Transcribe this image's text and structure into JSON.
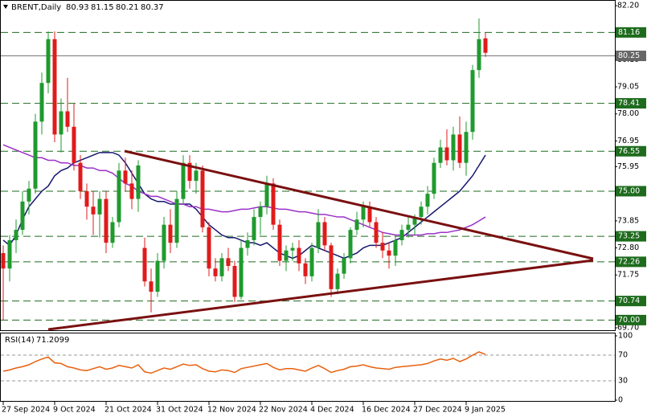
{
  "chart_data": {
    "type": "candlestick",
    "title": "BRENT,Daily",
    "up_color": "#1f9a2e",
    "down_color": "#e01b1b",
    "ylim": [
      69.7,
      82.2
    ],
    "yticks": [
      {
        "value": 82.2,
        "label": "82.20"
      },
      {
        "value": 80.1,
        "label": "80.10"
      },
      79.05,
      {
        "value": 78,
        "label": "78.00"
      },
      76.95,
      75.95,
      73.85,
      {
        "value": 72.8,
        "label": "72.80"
      },
      71.75,
      {
        "value": 69.7,
        "label": "69.70"
      }
    ],
    "levels": [
      81.16,
      78.41,
      76.55,
      {
        "value": 75,
        "label": "75.00"
      },
      73.25,
      72.26,
      70.74,
      {
        "value": 70,
        "label": "70.00"
      }
    ],
    "level_color": "#1e6b1e",
    "price_line": 80.25,
    "categories": [
      "27 Sep 2024",
      null,
      null,
      null,
      null,
      null,
      null,
      null,
      "9 Oct 2024",
      null,
      null,
      null,
      null,
      null,
      null,
      null,
      "21 Oct 2024",
      null,
      null,
      null,
      null,
      null,
      null,
      null,
      "31 Oct 2024",
      null,
      null,
      null,
      null,
      null,
      null,
      null,
      "12 Nov 2024",
      null,
      null,
      null,
      null,
      null,
      null,
      null,
      "22 Nov 2024",
      null,
      null,
      null,
      null,
      null,
      null,
      null,
      "4 Dec 2024",
      null,
      null,
      null,
      null,
      null,
      null,
      null,
      "16 Dec 2024",
      null,
      null,
      null,
      null,
      null,
      null,
      null,
      "27 Dec 2024",
      null,
      null,
      null,
      null,
      null,
      null,
      null,
      "9 Jan 2025",
      null,
      null,
      null
    ],
    "open": [
      72.6,
      72.0,
      73.1,
      73.5,
      74.6,
      75.1,
      77.7,
      79.2,
      80.9,
      77.2,
      78.1,
      77.5,
      76.1,
      75.0,
      74.4,
      74.1,
      74.7,
      73.0,
      73.8,
      75.8,
      75.3,
      74.7,
      72.8,
      71.5,
      71.1,
      72.3,
      73.7,
      73.0,
      74.7,
      76.1,
      75.4,
      75.8,
      73.6,
      72.0,
      71.7,
      72.4,
      72.1,
      70.9,
      72.8,
      73.1,
      74.0,
      74.4,
      75.3,
      73.7,
      72.3,
      72.7,
      72.8,
      72.2,
      71.7,
      72.8,
      73.8,
      72.9,
      71.2,
      71.8,
      72.4,
      73.5,
      73.9,
      74.4,
      73.8,
      73.0,
      72.7,
      72.5,
      73.1,
      73.5,
      73.7,
      74.0,
      74.4,
      74.9,
      76.1,
      76.7,
      76.2,
      77.2,
      76.1,
      77.3,
      79.7,
      80.93
    ],
    "high": [
      72.9,
      73.3,
      73.9,
      75.0,
      75.4,
      78.0,
      79.6,
      81.2,
      81.2,
      78.6,
      79.4,
      78.4,
      76.4,
      75.3,
      75.0,
      75.0,
      75.0,
      74.0,
      76.1,
      76.3,
      75.8,
      76.2,
      73.2,
      72.0,
      72.6,
      74.0,
      74.3,
      75.0,
      76.4,
      76.4,
      76.1,
      76.0,
      73.8,
      72.4,
      72.6,
      72.8,
      72.3,
      73.1,
      73.4,
      74.3,
      74.6,
      75.6,
      75.5,
      73.9,
      72.9,
      73.0,
      73.1,
      72.4,
      73.0,
      74.3,
      74.0,
      73.0,
      72.0,
      72.6,
      73.6,
      74.2,
      74.6,
      74.6,
      74.0,
      73.4,
      73.0,
      73.3,
      73.7,
      74.0,
      74.1,
      74.6,
      75.2,
      76.3,
      77.0,
      77.4,
      77.5,
      77.9,
      77.7,
      79.9,
      81.7,
      81.15
    ],
    "low": [
      70.0,
      71.5,
      72.6,
      73.3,
      74.1,
      74.9,
      77.2,
      78.8,
      76.9,
      76.5,
      77.3,
      75.8,
      74.7,
      73.9,
      73.3,
      73.2,
      72.6,
      72.8,
      73.6,
      75.0,
      74.3,
      74.2,
      71.3,
      70.3,
      70.9,
      72.0,
      72.6,
      72.8,
      74.5,
      75.1,
      74.9,
      73.4,
      71.7,
      71.5,
      71.5,
      71.9,
      70.7,
      70.8,
      72.5,
      72.9,
      73.3,
      74.1,
      73.5,
      72.1,
      71.9,
      72.3,
      71.9,
      71.4,
      71.5,
      72.6,
      72.7,
      70.9,
      71.0,
      71.6,
      72.2,
      73.3,
      73.6,
      73.6,
      72.8,
      72.4,
      72.0,
      72.1,
      72.9,
      73.2,
      73.3,
      73.7,
      74.1,
      74.7,
      75.9,
      76.0,
      75.8,
      75.9,
      75.6,
      77.0,
      79.4,
      80.21
    ],
    "close": [
      72.0,
      73.1,
      73.5,
      74.6,
      75.1,
      77.7,
      79.2,
      80.9,
      77.2,
      78.1,
      77.5,
      76.1,
      75.0,
      74.4,
      74.1,
      74.7,
      73.0,
      73.8,
      75.8,
      75.3,
      74.7,
      76.0,
      71.5,
      71.1,
      72.3,
      73.7,
      73.0,
      74.7,
      76.1,
      75.4,
      75.8,
      73.6,
      72.0,
      71.7,
      72.4,
      72.1,
      70.9,
      72.8,
      73.1,
      74.0,
      74.4,
      75.3,
      73.7,
      72.3,
      72.7,
      72.8,
      72.2,
      71.7,
      72.8,
      73.8,
      72.9,
      71.2,
      71.8,
      72.4,
      73.5,
      73.9,
      74.4,
      73.8,
      73.0,
      72.7,
      72.5,
      73.1,
      73.5,
      73.7,
      74.0,
      74.4,
      74.9,
      76.1,
      76.7,
      76.2,
      77.2,
      76.1,
      77.3,
      79.7,
      80.9,
      80.37
    ],
    "overlays": [
      {
        "color": "#16166e",
        "values": [
          73.1,
          72.9,
          73.3,
          73.9,
          74.4,
          74.7,
          75.0,
          75.2,
          75.6,
          75.8,
          75.9,
          76.1,
          76.2,
          76.3,
          76.4,
          76.5,
          76.5,
          76.5,
          76.4,
          76.1,
          75.7,
          75.3,
          74.9,
          74.7,
          74.6,
          74.6,
          74.5,
          74.5,
          74.5,
          74.5,
          74.3,
          74.0,
          73.7,
          73.5,
          73.3,
          73.2,
          73.2,
          73.1,
          73.0,
          73.0,
          72.9,
          73.0,
          72.8,
          72.6,
          72.5,
          72.4,
          72.5,
          72.7,
          72.9,
          72.8,
          72.7,
          72.6,
          72.5,
          72.4,
          72.5,
          72.6,
          72.8,
          72.9,
          72.9,
          72.9,
          73.0,
          73.1,
          73.2,
          73.4,
          73.6,
          73.8,
          74.0,
          74.2,
          74.4,
          74.6,
          74.8,
          75.0,
          75.3,
          75.6,
          76.0,
          76.4
        ]
      },
      {
        "color": "#9b30c8",
        "values": [
          76.8,
          76.7,
          76.6,
          76.5,
          76.4,
          76.3,
          76.3,
          76.2,
          76.2,
          76.1,
          76.1,
          76.0,
          76.0,
          75.9,
          75.9,
          75.8,
          75.8,
          75.7,
          75.5,
          75.3,
          75.2,
          75.0,
          74.9,
          74.8,
          74.8,
          74.7,
          74.6,
          74.5,
          74.5,
          74.4,
          74.4,
          74.3,
          74.3,
          74.25,
          74.2,
          74.2,
          74.25,
          74.3,
          74.3,
          74.35,
          74.4,
          74.4,
          74.35,
          74.3,
          74.3,
          74.25,
          74.2,
          74.2,
          74.15,
          74.1,
          74.1,
          74.05,
          74.0,
          74.0,
          73.9,
          73.8,
          73.7,
          73.6,
          73.5,
          73.4,
          73.35,
          73.3,
          73.3,
          73.3,
          73.3,
          73.3,
          73.35,
          73.35,
          73.4,
          73.4,
          73.45,
          73.5,
          73.6,
          73.7,
          73.85,
          74.0
        ]
      }
    ],
    "rsi": {
      "label": "RSI(14)",
      "color": "#e8600e",
      "ylim": [
        0,
        100
      ],
      "yticks": [
        100,
        70,
        30,
        0
      ],
      "values": [
        45,
        47,
        50,
        52,
        55,
        60,
        64,
        67,
        58,
        57,
        52,
        50,
        47,
        46,
        49,
        52,
        48,
        50,
        54,
        52,
        50,
        55,
        44,
        42,
        46,
        50,
        48,
        52,
        56,
        54,
        55,
        49,
        45,
        44,
        47,
        46,
        43,
        49,
        51,
        53,
        55,
        57,
        51,
        47,
        49,
        49,
        47,
        45,
        50,
        54,
        49,
        43,
        46,
        48,
        52,
        53,
        55,
        52,
        50,
        49,
        48,
        51,
        52,
        53,
        54,
        55,
        57,
        61,
        64,
        62,
        65,
        60,
        64,
        70,
        75,
        71.2099
      ]
    }
  }
}
